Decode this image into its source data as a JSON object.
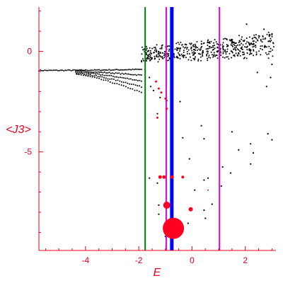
{
  "chart_data": {
    "type": "scatter",
    "xlabel": "E",
    "ylabel": "<J3>",
    "xlim": [
      -5.75,
      3.15
    ],
    "ylim": [
      -9.9,
      2.2
    ],
    "xticks": [
      -4,
      -2,
      0,
      2
    ],
    "xtick_labels": [
      "-4",
      "-2",
      "0",
      "2"
    ],
    "yticks": [
      0,
      -5
    ],
    "ytick_labels": [
      "0",
      "-5"
    ],
    "grid": false,
    "colors": {
      "axis": "#e8001c",
      "dots": "#000000",
      "highlight": "#ff0022",
      "green_line": "#007a14",
      "blue_line": "#0000ff",
      "magenta_line": "#e000e0"
    },
    "vertical_lines": [
      {
        "x": -1.76,
        "color": "#007a14",
        "width": 2
      },
      {
        "x": -0.97,
        "color": "#e000e0",
        "width": 2
      },
      {
        "x": -0.76,
        "color": "#0000ff",
        "width": 5
      },
      {
        "x": 1.03,
        "color": "#e000e0",
        "width": 2
      }
    ],
    "background_band": {
      "x_from": -5.75,
      "x_to": -1.9,
      "left_y": -0.95,
      "end_y_top": -0.9,
      "end_y_bottom": -2.05,
      "strands": 5
    },
    "background_cloud": {
      "x_from": -1.9,
      "x_to": 3.1,
      "y_center": -0.1,
      "y_spread": 0.6
    },
    "scattered_points": [
      {
        "x": -1.6,
        "y": -1.3
      },
      {
        "x": -1.55,
        "y": -1.75
      },
      {
        "x": -1.45,
        "y": -1.95
      },
      {
        "x": -1.2,
        "y": -2.3
      },
      {
        "x": -0.95,
        "y": -2.45
      },
      {
        "x": -0.45,
        "y": -2.5
      },
      {
        "x": -1.3,
        "y": -3.1
      },
      {
        "x": 0.35,
        "y": -3.7
      },
      {
        "x": -0.35,
        "y": -4.3
      },
      {
        "x": 0.45,
        "y": -4.35
      },
      {
        "x": 1.5,
        "y": -4.0
      },
      {
        "x": 2.2,
        "y": -4.6
      },
      {
        "x": 2.85,
        "y": -4.1
      },
      {
        "x": 3.0,
        "y": -4.4
      },
      {
        "x": -0.1,
        "y": -5.35
      },
      {
        "x": 1.15,
        "y": -5.75
      },
      {
        "x": 1.75,
        "y": -4.9
      },
      {
        "x": 2.3,
        "y": -5.05
      },
      {
        "x": 2.2,
        "y": -5.6
      },
      {
        "x": 0.6,
        "y": -6.3
      },
      {
        "x": 1.45,
        "y": -6.05
      },
      {
        "x": -1.6,
        "y": -6.3
      },
      {
        "x": 0.45,
        "y": -6.4
      },
      {
        "x": 1.1,
        "y": -6.7
      },
      {
        "x": -1.3,
        "y": -6.55
      },
      {
        "x": 0.1,
        "y": -6.9
      },
      {
        "x": 0.75,
        "y": -7.6
      },
      {
        "x": 0.45,
        "y": -7.9
      },
      {
        "x": -1.25,
        "y": -7.65
      },
      {
        "x": -1.25,
        "y": -8.1
      },
      {
        "x": -0.8,
        "y": -7.4
      },
      {
        "x": -0.15,
        "y": -8.55
      },
      {
        "x": -0.45,
        "y": -8.85
      },
      {
        "x": 0.5,
        "y": -8.3
      },
      {
        "x": -1.0,
        "y": -9.2
      },
      {
        "x": 2.05,
        "y": 1.35
      },
      {
        "x": 2.8,
        "y": -1.75
      },
      {
        "x": 2.45,
        "y": -1.05
      },
      {
        "x": 3.0,
        "y": -0.65
      },
      {
        "x": 2.95,
        "y": -1.3
      },
      {
        "x": 2.7,
        "y": 1.1
      }
    ],
    "highlight_points": [
      {
        "x": -1.35,
        "y": -1.5,
        "r": 1.5
      },
      {
        "x": -1.25,
        "y": -1.85,
        "r": 1.5
      },
      {
        "x": -1.15,
        "y": -2.05,
        "r": 1.5
      },
      {
        "x": -1.0,
        "y": -2.35,
        "r": 1.5
      },
      {
        "x": -0.95,
        "y": -2.85,
        "r": 1.5
      },
      {
        "x": -1.3,
        "y": -3.3,
        "r": 1.5
      },
      {
        "x": 0.6,
        "y": -6.9,
        "r": 1
      },
      {
        "x": -1.2,
        "y": -6.25,
        "r": 2.5
      },
      {
        "x": -1.05,
        "y": -6.25,
        "r": 2.5
      },
      {
        "x": -0.75,
        "y": -6.25,
        "r": 2.5
      },
      {
        "x": -0.35,
        "y": -6.25,
        "r": 2
      },
      {
        "x": -0.95,
        "y": -7.65,
        "r": 5
      },
      {
        "x": -0.05,
        "y": -7.85,
        "r": 3
      },
      {
        "x": -0.7,
        "y": -8.8,
        "r": 15
      }
    ]
  }
}
